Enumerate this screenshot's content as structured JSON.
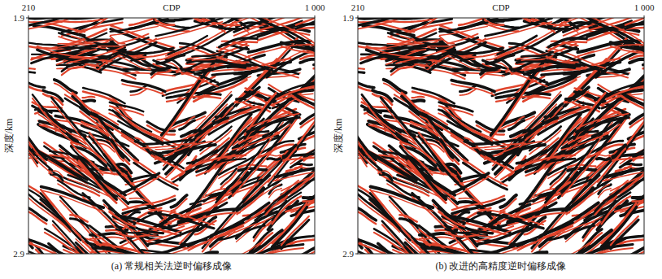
{
  "chart_data": [
    {
      "type": "seismic_section",
      "title": "(a) 常规相关法逆时偏移成像",
      "x_label": "CDP",
      "y_label": "深度/km",
      "xlim": [
        210,
        1000
      ],
      "xticks": [
        210,
        {
          "value": 1000,
          "label": "1 000"
        }
      ],
      "ylim": [
        1.9,
        2.9
      ],
      "yticks": [
        1.9,
        2.9
      ],
      "grid": false
    },
    {
      "type": "seismic_section",
      "title": "(b) 改进的高精度逆时偏移成像",
      "x_label": "CDP",
      "y_label": "深度/km",
      "xlim": [
        210,
        1000
      ],
      "xticks": [
        210,
        {
          "value": 1000,
          "label": "1 000"
        }
      ],
      "ylim": [
        1.9,
        2.9
      ],
      "yticks": [
        1.9,
        2.9
      ],
      "grid": false
    }
  ]
}
